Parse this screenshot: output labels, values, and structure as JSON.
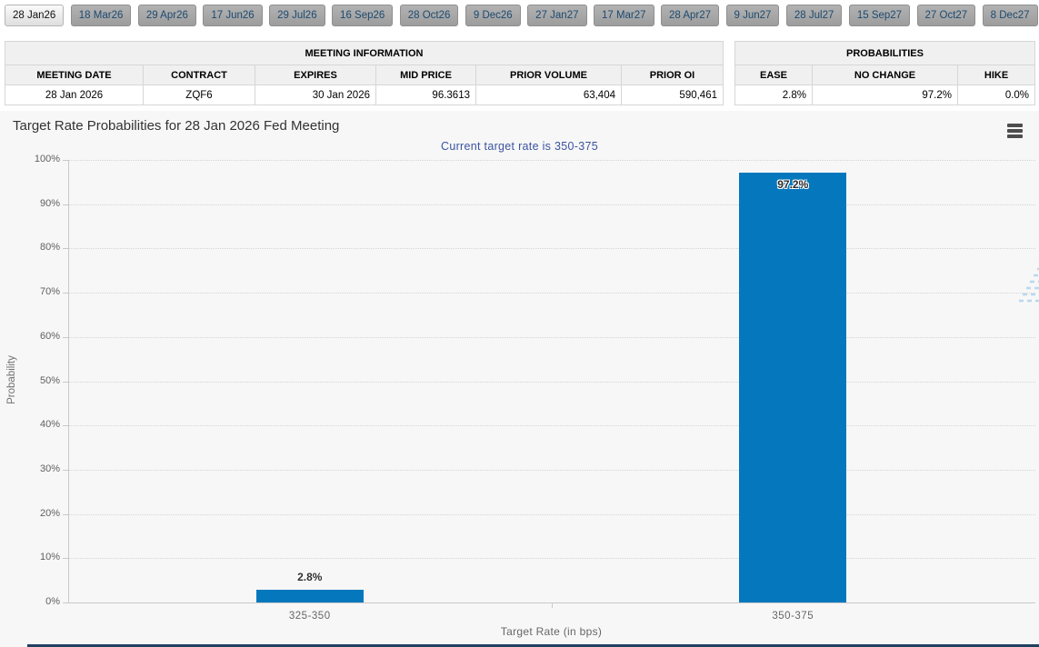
{
  "tabs": [
    {
      "label": "28 Jan26",
      "active": true
    },
    {
      "label": "18 Mar26"
    },
    {
      "label": "29 Apr26"
    },
    {
      "label": "17 Jun26"
    },
    {
      "label": "29 Jul26"
    },
    {
      "label": "16 Sep26"
    },
    {
      "label": "28 Oct26"
    },
    {
      "label": "9 Dec26"
    },
    {
      "label": "27 Jan27"
    },
    {
      "label": "17 Mar27"
    },
    {
      "label": "28 Apr27"
    },
    {
      "label": "9 Jun27"
    },
    {
      "label": "28 Jul27"
    },
    {
      "label": "15 Sep27"
    },
    {
      "label": "27 Oct27"
    },
    {
      "label": "8 Dec27"
    }
  ],
  "meeting_info": {
    "title": "MEETING INFORMATION",
    "columns": [
      "MEETING DATE",
      "CONTRACT",
      "EXPIRES",
      "MID PRICE",
      "PRIOR VOLUME",
      "PRIOR OI"
    ],
    "row": [
      "28 Jan 2026",
      "ZQF6",
      "30 Jan 2026",
      "96.3613",
      "63,404",
      "590,461"
    ]
  },
  "probabilities": {
    "title": "PROBABILITIES",
    "columns": [
      "EASE",
      "NO CHANGE",
      "HIKE"
    ],
    "row": [
      "2.8%",
      "97.2%",
      "0.0%"
    ]
  },
  "chart_data": {
    "type": "bar",
    "title": "Target Rate Probabilities for 28 Jan 2026 Fed Meeting",
    "subtitle": "Current target rate is 350-375",
    "categories": [
      "325-350",
      "350-375"
    ],
    "values": [
      2.8,
      97.2
    ],
    "value_labels": [
      "2.8%",
      "97.2%"
    ],
    "xlabel": "Target Rate (in bps)",
    "ylabel": "Probability",
    "ylim": [
      0,
      100
    ],
    "ytick_step": 10,
    "ytick_labels": [
      "0%",
      "10%",
      "20%",
      "30%",
      "40%",
      "50%",
      "60%",
      "70%",
      "80%",
      "90%",
      "100%"
    ],
    "grid": true,
    "legend": "none",
    "bar_color": "#0578bd",
    "watermark_letter": "Q"
  },
  "colors": {
    "bar": "#0578bd",
    "subtitle_text": "#3b53a0",
    "tab_text": "#1c4a70",
    "chart_background": "#f7f7f7",
    "footer_strip": "#20405f"
  }
}
